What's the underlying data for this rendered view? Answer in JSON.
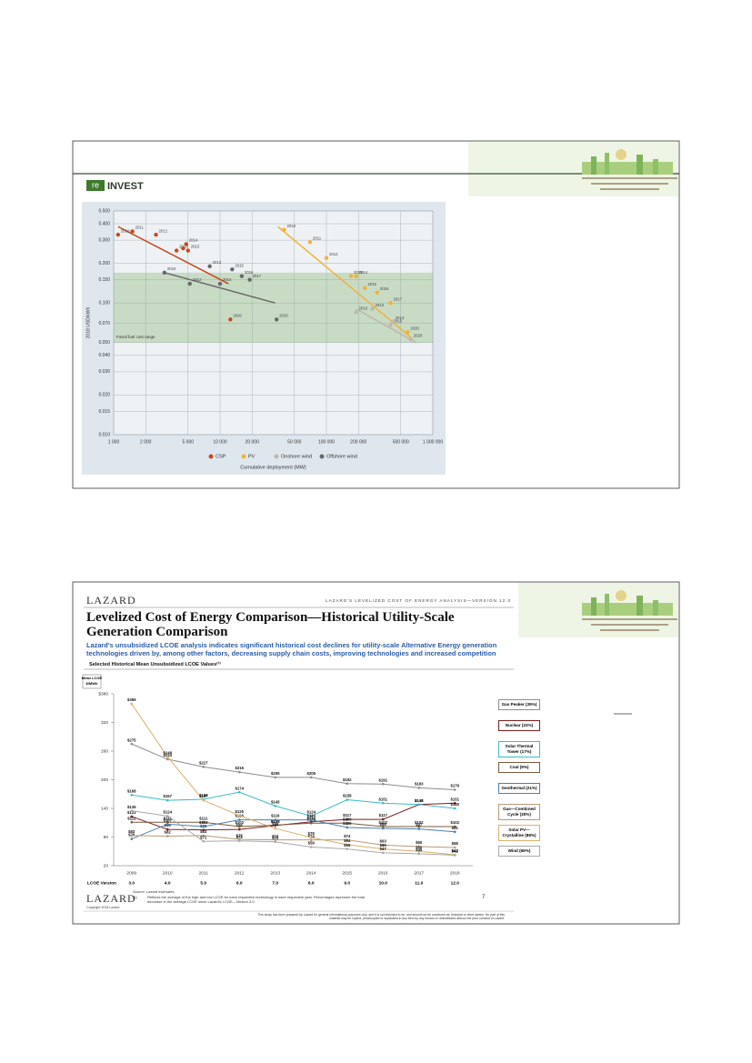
{
  "slides": [
    {
      "logo": {
        "mark": "re",
        "text": "INVEST"
      }
    },
    {
      "brand": "LAZARD",
      "header": "LAZARD'S LEVELIZED COST OF ENERGY ANALYSIS—VERSION 12.0",
      "title": "Levelized Cost of Energy Comparison—Historical Utility-Scale Generation Comparison",
      "subtitle": "Lazard's unsubsidized LCOE analysis indicates significant historical cost declines for utility-scale Alternative Energy generation technologies driven by, among other factors, decreasing supply chain costs, improving technologies and increased competition",
      "section": "Selected Historical Mean Unsubsidized LCOE Values⁽¹⁾",
      "lcoe_version_label": "LCOE Version",
      "lcoe_versions": [
        "3.0",
        "4.0",
        "5.0",
        "6.0",
        "7.0",
        "8.0",
        "9.0",
        "10.0",
        "11.0",
        "12.0"
      ],
      "source": "Source: Lazard estimates.",
      "footnote_number": "(1)",
      "footnote": "Reflects the average of the high and low LCOE for each respective technology in each respective year. Percentages represent the total decrease in the average LCOE since Lazard's LCOE—Version 3.0.",
      "page": "7",
      "footer_brand": "LAZARD",
      "copyright": "Copyright 2018 Lazard",
      "disclaimer": "This study has been prepared by Lazard for general informational purposes only, and it is not intended to be, and should not be construed as, financial or other advice. No part of this material may be copied, photocopied or duplicated in any form by any means or redistributed without the prior consent of Lazard."
    }
  ],
  "chart_data": [
    {
      "type": "scatter",
      "xlog": true,
      "ylog": true,
      "grid": true,
      "legend": "bottom",
      "ylabel": "2018 USD/kWh",
      "xlabel": "Cumulative deployment (MW)",
      "xlim": [
        1000,
        1000000
      ],
      "ylim": [
        0.01,
        0.5
      ],
      "xticks": [
        {
          "value": 1000,
          "label": "1 000"
        },
        {
          "value": 2000,
          "label": "2 000"
        },
        {
          "value": 5000,
          "label": "5 000"
        },
        {
          "value": 10000,
          "label": "10 000"
        },
        {
          "value": 20000,
          "label": "20 000"
        },
        {
          "value": 50000,
          "label": "50 000"
        },
        {
          "value": 100000,
          "label": "100 000"
        },
        {
          "value": 200000,
          "label": "200 000"
        },
        {
          "value": 500000,
          "label": "500 000"
        },
        {
          "value": 1000000,
          "label": "1 000 000"
        }
      ],
      "yticks": [
        {
          "value": 0.01,
          "label": "0.010"
        },
        {
          "value": 0.015,
          "label": "0.015"
        },
        {
          "value": 0.02,
          "label": "0.020"
        },
        {
          "value": 0.03,
          "label": "0.030"
        },
        {
          "value": 0.04,
          "label": "0.040"
        },
        {
          "value": 0.05,
          "label": "0.050"
        },
        {
          "value": 0.07,
          "label": "0.070"
        },
        {
          "value": 0.1,
          "label": "0.100"
        },
        {
          "value": 0.15,
          "label": "0.150"
        },
        {
          "value": 0.2,
          "label": "0.200"
        },
        {
          "value": 0.3,
          "label": "0.300"
        },
        {
          "value": 0.4,
          "label": "0.400"
        },
        {
          "value": 0.5,
          "label": "0.500"
        }
      ],
      "band": {
        "ylim": [
          0.05,
          0.17
        ],
        "label": "Fossil fuel cost range",
        "color": "#a9c99b"
      },
      "series": [
        {
          "name": "CSP",
          "color": "#c8491d",
          "x": [
            1100,
            1500,
            2500,
            3900,
            4500,
            4800,
            5000,
            12500
          ],
          "y": [
            0.33,
            0.35,
            0.33,
            0.25,
            0.26,
            0.28,
            0.25,
            0.075
          ],
          "point_labels": [
            "2010",
            "2011",
            "2012",
            "2013",
            null,
            "2014",
            "2015",
            "2020"
          ],
          "trend_x": [
            1100,
            12000
          ],
          "trend_y": [
            0.38,
            0.14
          ]
        },
        {
          "name": "PV",
          "color": "#f3b134",
          "x": [
            40000,
            70000,
            100000,
            170000,
            190000,
            230000,
            300000,
            400000,
            580000
          ],
          "y": [
            0.36,
            0.29,
            0.22,
            0.16,
            0.16,
            0.13,
            0.12,
            0.1,
            0.06
          ],
          "point_labels": [
            "2010",
            "2011",
            "2012",
            "2013",
            "2014",
            "2015",
            "2016",
            "2017",
            "2020"
          ],
          "trend_x": [
            35000,
            620000
          ],
          "trend_y": [
            0.38,
            0.055
          ]
        },
        {
          "name": "Onshore wind",
          "color": "#bdb8ae",
          "x": [
            190000,
            270000,
            400000,
            420000,
            620000
          ],
          "y": [
            0.085,
            0.09,
            0.068,
            0.072,
            0.053
          ],
          "point_labels": [
            "2010",
            "2013",
            "2015",
            "2014",
            "2020"
          ],
          "trend_x": [
            190000,
            700000
          ],
          "trend_y": [
            0.09,
            0.05
          ]
        },
        {
          "name": "Offshore wind",
          "color": "#686868",
          "x": [
            3000,
            5200,
            8000,
            10000,
            13000,
            16000,
            19000,
            34000
          ],
          "y": [
            0.17,
            0.14,
            0.19,
            0.14,
            0.18,
            0.16,
            0.15,
            0.075
          ],
          "point_labels": [
            "2010",
            "2012",
            "2013",
            "2014",
            "2015",
            "2016",
            "2017",
            "2020"
          ],
          "trend_x": [
            3000,
            33000
          ],
          "trend_y": [
            0.17,
            0.1
          ]
        }
      ]
    },
    {
      "type": "line",
      "legend": "right",
      "ylabel": [
        "Mean LCOE",
        "$/MWh"
      ],
      "categories": [
        "2009",
        "2010",
        "2011",
        "2012",
        "2013",
        "2014",
        "2015",
        "2016",
        "2017",
        "2018"
      ],
      "ylim": [
        20,
        380
      ],
      "yticks": [
        20,
        80,
        140,
        200,
        260,
        320,
        {
          "value": 380,
          "label": "$380"
        }
      ],
      "series": [
        {
          "name": "Gas Peaker (35%)",
          "color": "#8c8c8c",
          "values": [
            275,
            243,
            227,
            216,
            205,
            205,
            192,
            191,
            183,
            179
          ],
          "value_labels": [
            "$275",
            "$243",
            "$227",
            "$216",
            "$205",
            "$205",
            "$192",
            "$191",
            "$183",
            "$179"
          ]
        },
        {
          "name": "Nuclear (23%)",
          "color": "#7a1f1f",
          "values": [
            123,
            96,
            95,
            96,
            104,
            112,
            117,
            117,
            148,
            151
          ],
          "value_labels": [
            "$123",
            "$96",
            "$95",
            "$96",
            "$104",
            "$112",
            "$117",
            "$117",
            "$148",
            "$151"
          ]
        },
        {
          "name": "Solar Thermal Tower (17%)",
          "color": "#38bcc6",
          "values": [
            168,
            157,
            159,
            174,
            145,
            124,
            158,
            151,
            148,
            140
          ],
          "value_labels": [
            "$168",
            "$157",
            "$159",
            "$174",
            "$145",
            "$124",
            "$158",
            "$151",
            "$148",
            "$140"
          ]
        },
        {
          "name": "Coal (9%)",
          "color": "#7b5b3b",
          "values": [
            111,
            111,
            111,
            102,
            105,
            109,
            109,
            102,
            102,
            102
          ],
          "value_labels": [
            "$111",
            "$111",
            "$111",
            "$102",
            "$105",
            "$109",
            "$109",
            "$102",
            "$102",
            "$102"
          ]
        },
        {
          "name": "Geothermal (21%)",
          "color": "#4b7fb1",
          "values": [
            76,
            107,
            102,
            116,
            116,
            116,
            100,
            98,
            97,
            91
          ],
          "value_labels": [
            "$76",
            "$107",
            "$102",
            "$116",
            "$116",
            "$116",
            "$100",
            "$98",
            "$97",
            "$91"
          ]
        },
        {
          "name": "Gas—Combined Cycle (30%)",
          "color": "#b89a7a",
          "values": [
            83,
            82,
            83,
            75,
            74,
            74,
            74,
            63,
            60,
            58
          ],
          "value_labels": [
            "$83",
            "$82",
            "$83",
            "$75",
            "$74",
            "$74",
            "$74",
            "$63",
            "$60",
            "$58"
          ]
        },
        {
          "name": "Solar PV—Crystalline (88%)",
          "color": "#d9b06a",
          "values": [
            359,
            248,
            157,
            125,
            98,
            79,
            64,
            55,
            50,
            43
          ],
          "value_labels": [
            "$359",
            "$248",
            "$157",
            "$125",
            "$98",
            "$79",
            "$64",
            "$55",
            "$50",
            "$43"
          ]
        },
        {
          "name": "Wind (69%)",
          "color": "#a9a9a9",
          "values": [
            135,
            124,
            71,
            72,
            70,
            59,
            55,
            47,
            45,
            42
          ],
          "value_labels": [
            "$135",
            "$124",
            "$71",
            "$72",
            "$70",
            "$59",
            "$55",
            "$47",
            "$45",
            "$42"
          ]
        }
      ]
    }
  ]
}
